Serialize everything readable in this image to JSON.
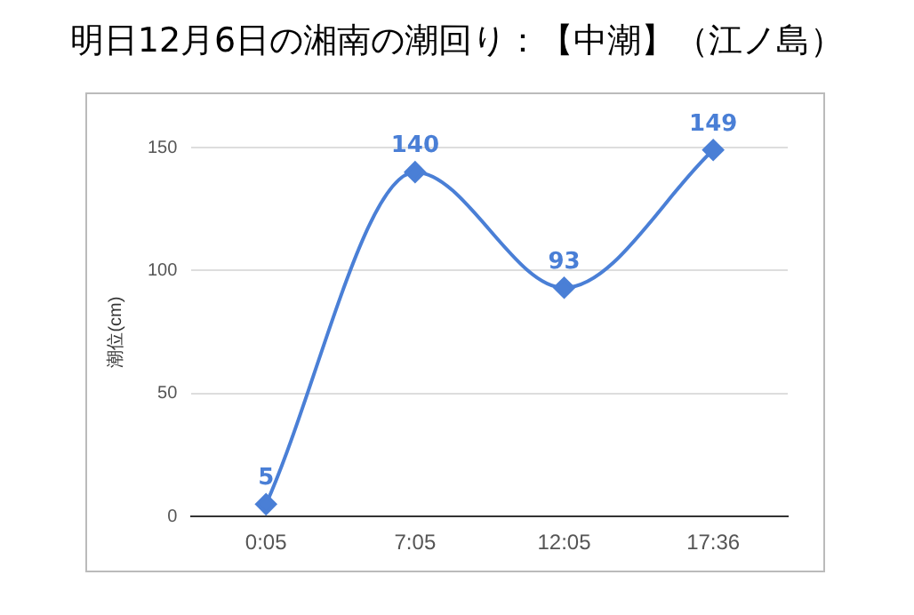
{
  "chart_data": {
    "type": "line",
    "title": "明日12月6日の湘南の潮回り：【中潮】（江ノ島）",
    "ylabel": "潮位(cm)",
    "categories": [
      "0:05",
      "7:05",
      "12:05",
      "17:36"
    ],
    "series": [
      {
        "color": "#4a7fd6",
        "values": [
          5,
          140,
          93,
          149
        ]
      }
    ],
    "ylim": [
      0,
      150
    ],
    "yticks": [
      0,
      50,
      100,
      150
    ],
    "grid": "y",
    "marker": "diamond",
    "line_style": "solid",
    "data_labels": true,
    "legend": false
  }
}
